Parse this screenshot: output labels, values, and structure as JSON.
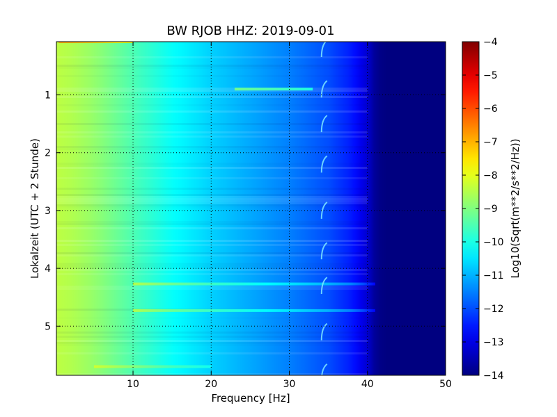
{
  "chart_data": {
    "type": "heatmap",
    "title": "BW RJOB HHZ: 2019-09-01",
    "xlabel": "Frequency [Hz]",
    "ylabel": "Lokalzeit (UTC + 2 Stunde)",
    "xlim": [
      0.195,
      50
    ],
    "ylim": [
      5.85,
      0.08
    ],
    "y_inverted": true,
    "x_ticks": [
      10,
      20,
      30,
      40,
      50
    ],
    "x_tick_labels": [
      "10",
      "20",
      "30",
      "40",
      "50"
    ],
    "y_ticks": [
      1,
      2,
      3,
      4,
      5
    ],
    "y_tick_labels": [
      "1",
      "2",
      "3",
      "4",
      "5"
    ],
    "grid": true,
    "colormap": "jet",
    "colorbar": {
      "label": "Log10(Sqrt(m**2/s**2/Hz))",
      "range": [
        -14,
        -4
      ],
      "ticks": [
        -4,
        -5,
        -6,
        -7,
        -8,
        -9,
        -10,
        -11,
        -12,
        -13,
        -14
      ],
      "tick_labels": [
        "−4",
        "−5",
        "−6",
        "−7",
        "−8",
        "−9",
        "−10",
        "−11",
        "−12",
        "−13",
        "−14"
      ]
    },
    "spectral_profile": {
      "description_units": "frequency in Hz, value in Log10(Sqrt(m**2/s**2/Hz))",
      "frequencies": [
        0.2,
        2,
        5,
        10,
        15,
        20,
        25,
        30,
        35,
        38,
        40,
        41,
        42,
        50
      ],
      "values": [
        -8.4,
        -8.5,
        -8.8,
        -9.5,
        -10.2,
        -10.7,
        -11.1,
        -11.5,
        -12.0,
        -12.5,
        -13.2,
        -13.8,
        -14.0,
        -14.0
      ]
    },
    "bright_bands": [
      {
        "time": 0.08,
        "f_from": 0.5,
        "f_to": 10,
        "boost": 1.5
      },
      {
        "time": 0.9,
        "f_from": 23,
        "f_to": 33,
        "boost": 1.8
      },
      {
        "time": 4.27,
        "f_from": 10,
        "f_to": 41,
        "boost": 1.0
      },
      {
        "time": 4.73,
        "f_from": 10,
        "f_to": 41,
        "boost": 1.0
      },
      {
        "time": 5.7,
        "f_from": 5,
        "f_to": 20,
        "boost": 0.6
      }
    ],
    "tonal_line": {
      "frequency": 34.3,
      "tick_times": [
        0.2,
        0.9,
        1.5,
        2.2,
        3.0,
        3.7,
        4.3,
        5.1,
        5.8
      ]
    }
  }
}
